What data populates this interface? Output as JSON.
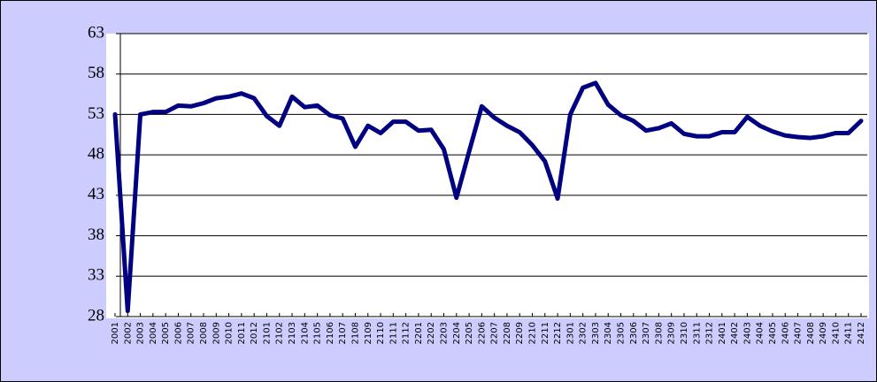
{
  "chart_data": {
    "type": "line",
    "categories": [
      "2001",
      "2002",
      "2003",
      "2004",
      "2005",
      "2006",
      "2007",
      "2008",
      "2009",
      "2010",
      "2011",
      "2012",
      "2101",
      "2102",
      "2103",
      "2104",
      "2105",
      "2106",
      "2107",
      "2108",
      "2109",
      "2110",
      "2111",
      "2112",
      "2201",
      "2202",
      "2203",
      "2204",
      "2205",
      "2206",
      "2207",
      "2208",
      "2209",
      "2210",
      "2211",
      "2212",
      "2301",
      "2302",
      "2303",
      "2304",
      "2305",
      "2306",
      "2307",
      "2308",
      "2309",
      "2310",
      "2311",
      "2312",
      "2401",
      "2402",
      "2403",
      "2404",
      "2405",
      "2406",
      "2407",
      "2408",
      "2409",
      "2410",
      "2411",
      "2412"
    ],
    "values": [
      53.0,
      28.7,
      53.0,
      53.3,
      53.3,
      54.1,
      54.0,
      54.4,
      55.0,
      55.2,
      55.6,
      55.0,
      52.8,
      51.6,
      55.2,
      53.9,
      54.1,
      52.9,
      52.5,
      49.0,
      51.6,
      50.7,
      52.1,
      52.1,
      51.0,
      51.1,
      48.7,
      42.7,
      48.4,
      54.0,
      52.6,
      51.6,
      50.8,
      49.2,
      47.2,
      42.6,
      53.0,
      56.3,
      56.9,
      54.2,
      52.9,
      52.2,
      51.0,
      51.3,
      51.9,
      50.6,
      50.3,
      50.3,
      50.8,
      50.8,
      52.7,
      51.6,
      50.9,
      50.4,
      50.2,
      50.1,
      50.3,
      50.7,
      50.7,
      52.2
    ],
    "color": "#000080",
    "ylim": [
      28,
      63
    ],
    "yticks": [
      28,
      33,
      38,
      43,
      48,
      53,
      58,
      63
    ],
    "grid": true
  }
}
